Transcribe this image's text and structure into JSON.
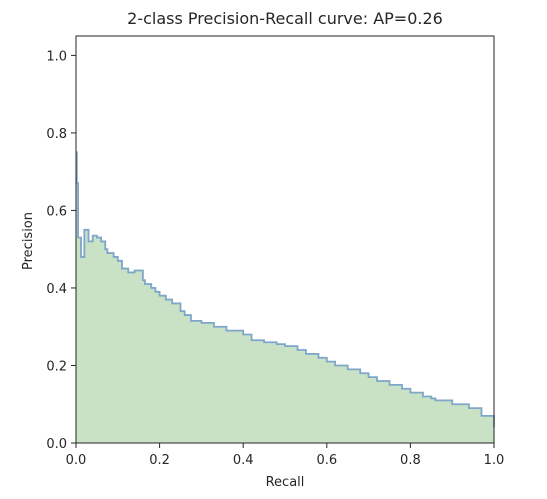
{
  "chart_data": {
    "type": "area",
    "title": "2-class Precision-Recall curve: AP=0.26",
    "xlabel": "Recall",
    "ylabel": "Precision",
    "xlim": [
      0.0,
      1.0
    ],
    "ylim": [
      0.0,
      1.05
    ],
    "xticks": [
      "0.0",
      "0.2",
      "0.4",
      "0.6",
      "0.8",
      "1.0"
    ],
    "yticks": [
      "0.0",
      "0.2",
      "0.4",
      "0.6",
      "0.8",
      "1.0"
    ],
    "grid": false,
    "step": "post",
    "colors": {
      "fill": "#c9e2c6",
      "line": "#7ea6c9",
      "axes": "#262626"
    },
    "series": [
      {
        "recall": [
          0.0,
          0.002,
          0.005,
          0.012,
          0.02,
          0.03,
          0.04,
          0.05,
          0.06,
          0.07,
          0.075,
          0.09,
          0.1,
          0.11,
          0.125,
          0.14,
          0.16,
          0.165,
          0.18,
          0.19,
          0.2,
          0.215,
          0.23,
          0.25,
          0.26,
          0.275,
          0.3,
          0.33,
          0.36,
          0.4,
          0.42,
          0.45,
          0.48,
          0.5,
          0.53,
          0.55,
          0.58,
          0.6,
          0.62,
          0.65,
          0.68,
          0.7,
          0.72,
          0.75,
          0.78,
          0.8,
          0.83,
          0.85,
          0.86,
          0.9,
          0.94,
          0.97,
          1.0
        ],
        "precision": [
          0.75,
          0.67,
          0.53,
          0.48,
          0.55,
          0.52,
          0.535,
          0.53,
          0.52,
          0.5,
          0.49,
          0.48,
          0.47,
          0.45,
          0.44,
          0.445,
          0.42,
          0.41,
          0.4,
          0.39,
          0.38,
          0.37,
          0.36,
          0.34,
          0.33,
          0.315,
          0.31,
          0.3,
          0.29,
          0.28,
          0.265,
          0.26,
          0.255,
          0.25,
          0.24,
          0.23,
          0.22,
          0.21,
          0.2,
          0.19,
          0.18,
          0.17,
          0.16,
          0.15,
          0.14,
          0.13,
          0.12,
          0.115,
          0.11,
          0.1,
          0.09,
          0.07,
          0.04
        ]
      }
    ]
  }
}
